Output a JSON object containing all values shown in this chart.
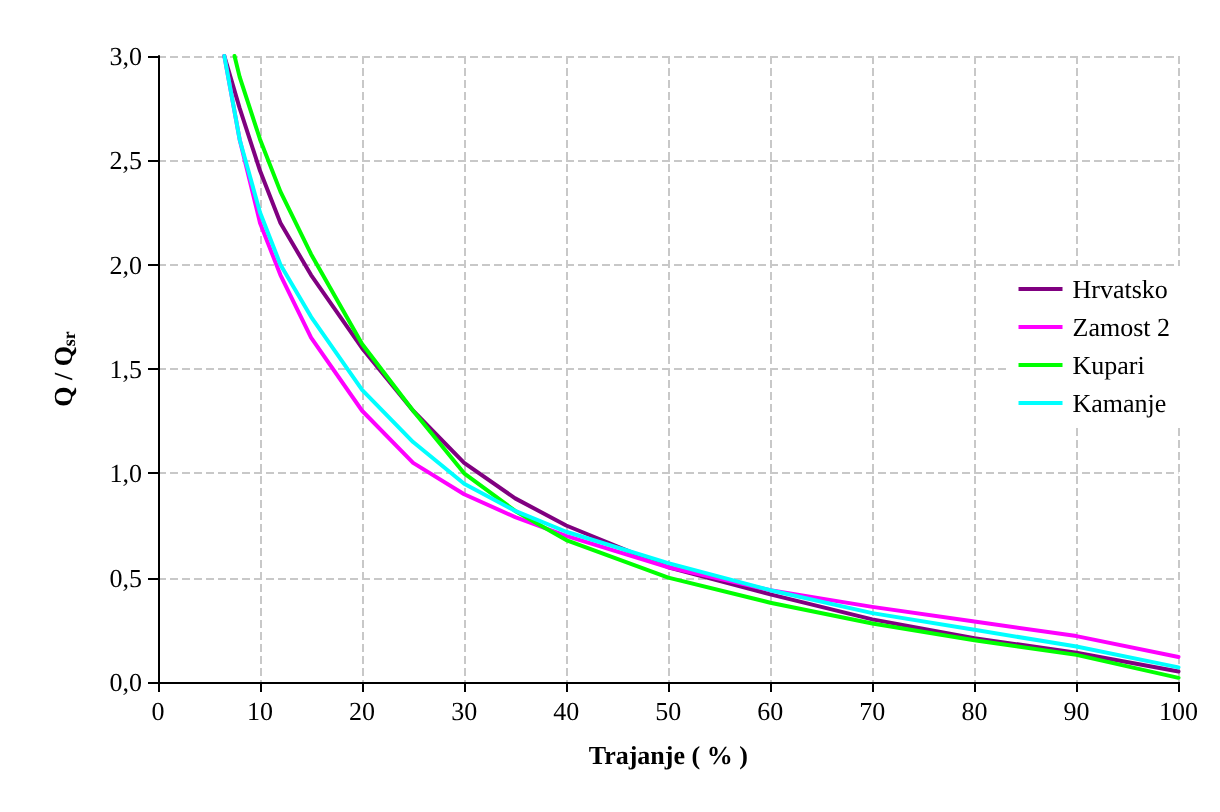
{
  "chart_data": {
    "type": "line",
    "xlabel": "Trajanje ( % )",
    "ylabel": "Q / Q$_{sr}$",
    "xlim": [
      0,
      100
    ],
    "xticks": [
      0,
      10,
      20,
      30,
      40,
      50,
      60,
      70,
      80,
      90,
      100
    ],
    "ylim": [
      0,
      3
    ],
    "yticks": [
      {
        "value": 0,
        "label": "0,0"
      },
      {
        "value": 0.5,
        "label": "0,5"
      },
      {
        "value": 1,
        "label": "1,0"
      },
      {
        "value": 1.5,
        "label": "1,5"
      },
      {
        "value": 2,
        "label": "2,0"
      },
      {
        "value": 2.5,
        "label": "2,5"
      },
      {
        "value": 3,
        "label": "3,0"
      }
    ],
    "grid": true,
    "legend": "right",
    "marker": "none",
    "line_style": "solid",
    "series": [
      {
        "name": "Hrvatsko",
        "color": "#800080",
        "x": [
          6.5,
          8,
          10,
          12,
          15,
          20,
          25,
          30,
          35,
          40,
          50,
          60,
          70,
          80,
          90,
          100
        ],
        "values": [
          3,
          2.75,
          2.45,
          2.2,
          1.95,
          1.6,
          1.3,
          1.05,
          0.88,
          0.75,
          0.55,
          0.42,
          0.3,
          0.21,
          0.14,
          0.05
        ]
      },
      {
        "name": "Zamost 2",
        "color": "#ff00ff",
        "x": [
          6.5,
          8,
          10,
          12,
          15,
          20,
          25,
          30,
          35,
          40,
          50,
          60,
          70,
          80,
          90,
          100
        ],
        "values": [
          3,
          2.6,
          2.2,
          1.95,
          1.65,
          1.3,
          1.05,
          0.9,
          0.79,
          0.7,
          0.55,
          0.44,
          0.36,
          0.29,
          0.22,
          0.12
        ]
      },
      {
        "name": "Kupari",
        "color": "#00ff00",
        "x": [
          7.5,
          8,
          10,
          12,
          15,
          20,
          25,
          30,
          35,
          40,
          50,
          60,
          70,
          80,
          90,
          100
        ],
        "values": [
          3,
          2.9,
          2.6,
          2.35,
          2.05,
          1.62,
          1.3,
          1.0,
          0.82,
          0.68,
          0.5,
          0.38,
          0.28,
          0.2,
          0.13,
          0.02
        ]
      },
      {
        "name": "Kamanje",
        "color": "#00ffff",
        "x": [
          6.5,
          8,
          10,
          12,
          15,
          20,
          25,
          30,
          35,
          40,
          50,
          60,
          70,
          80,
          90,
          100
        ],
        "values": [
          3,
          2.6,
          2.25,
          2.0,
          1.75,
          1.4,
          1.15,
          0.95,
          0.82,
          0.72,
          0.57,
          0.44,
          0.33,
          0.25,
          0.17,
          0.07
        ]
      }
    ]
  }
}
